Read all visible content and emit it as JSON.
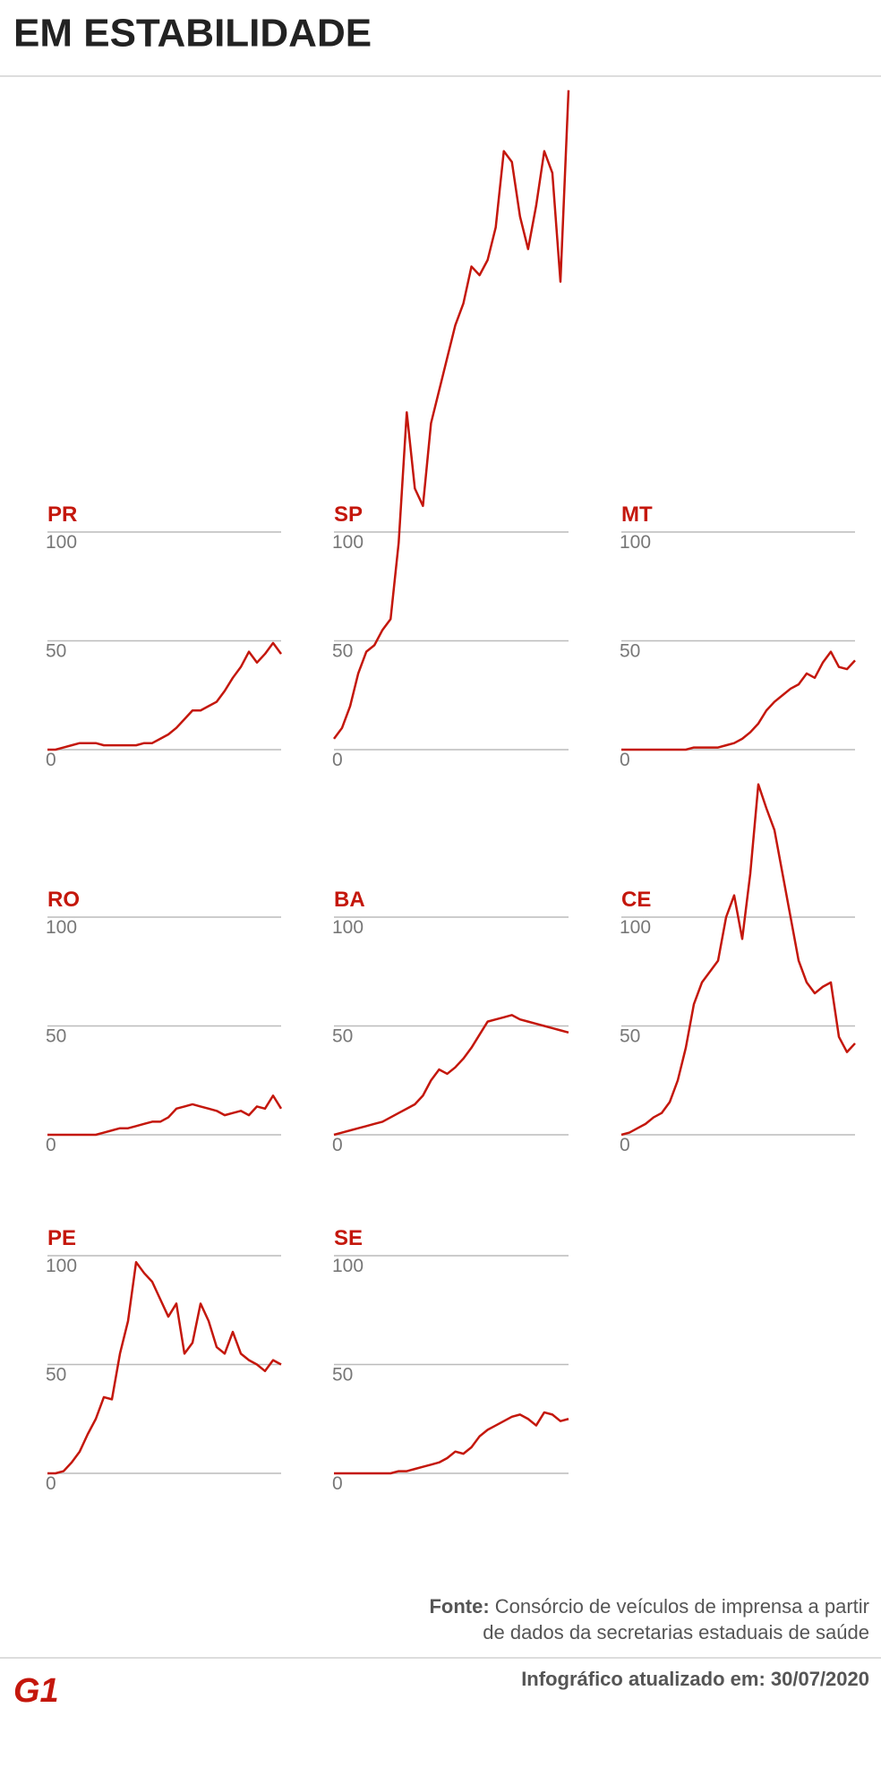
{
  "title": "EM ESTABILIDADE",
  "chart_data": [
    {
      "type": "line",
      "title": "PR",
      "color": "#c4170c",
      "grid": true,
      "ylim": [
        0,
        100
      ],
      "yticks": [
        0,
        50,
        100
      ],
      "values": [
        0,
        0,
        1,
        2,
        3,
        3,
        3,
        2,
        2,
        2,
        2,
        2,
        3,
        3,
        5,
        7,
        10,
        14,
        18,
        18,
        20,
        22,
        27,
        33,
        38,
        45,
        40,
        44,
        49,
        44
      ]
    },
    {
      "type": "line",
      "title": "SP",
      "color": "#c4170c",
      "grid": true,
      "ylim": [
        0,
        310
      ],
      "yticks": [
        0,
        50,
        100
      ],
      "values": [
        5,
        10,
        20,
        35,
        45,
        48,
        55,
        60,
        95,
        155,
        120,
        112,
        150,
        165,
        180,
        195,
        205,
        222,
        218,
        225,
        240,
        275,
        270,
        245,
        230,
        250,
        275,
        265,
        215,
        303
      ]
    },
    {
      "type": "line",
      "title": "MT",
      "color": "#c4170c",
      "grid": true,
      "ylim": [
        0,
        100
      ],
      "yticks": [
        0,
        50,
        100
      ],
      "values": [
        0,
        0,
        0,
        0,
        0,
        0,
        0,
        0,
        0,
        1,
        1,
        1,
        1,
        2,
        3,
        5,
        8,
        12,
        18,
        22,
        25,
        28,
        30,
        35,
        33,
        40,
        45,
        38,
        37,
        41
      ]
    },
    {
      "type": "line",
      "title": "RO",
      "color": "#c4170c",
      "grid": true,
      "ylim": [
        0,
        100
      ],
      "yticks": [
        0,
        50,
        100
      ],
      "values": [
        0,
        0,
        0,
        0,
        0,
        0,
        0,
        1,
        2,
        3,
        3,
        4,
        5,
        6,
        6,
        8,
        12,
        13,
        14,
        13,
        12,
        11,
        9,
        10,
        11,
        9,
        13,
        12,
        18,
        12
      ]
    },
    {
      "type": "line",
      "title": "BA",
      "color": "#c4170c",
      "grid": true,
      "ylim": [
        0,
        100
      ],
      "yticks": [
        0,
        50,
        100
      ],
      "values": [
        0,
        1,
        2,
        3,
        4,
        5,
        6,
        8,
        10,
        12,
        14,
        18,
        25,
        30,
        28,
        31,
        35,
        40,
        46,
        52,
        53,
        54,
        55,
        53,
        52,
        51,
        50,
        49,
        48,
        47
      ]
    },
    {
      "type": "line",
      "title": "CE",
      "color": "#c4170c",
      "grid": true,
      "ylim": [
        0,
        165
      ],
      "yticks": [
        0,
        50,
        100
      ],
      "values": [
        0,
        1,
        3,
        5,
        8,
        10,
        15,
        25,
        40,
        60,
        70,
        75,
        80,
        100,
        110,
        90,
        120,
        161,
        150,
        140,
        120,
        100,
        80,
        70,
        65,
        68,
        70,
        45,
        38,
        42
      ]
    },
    {
      "type": "line",
      "title": "PE",
      "color": "#c4170c",
      "grid": true,
      "ylim": [
        0,
        100
      ],
      "yticks": [
        0,
        50,
        100
      ],
      "values": [
        0,
        0,
        1,
        5,
        10,
        18,
        25,
        35,
        34,
        55,
        70,
        97,
        92,
        88,
        80,
        72,
        78,
        55,
        60,
        78,
        70,
        58,
        55,
        65,
        55,
        52,
        50,
        47,
        52,
        50
      ]
    },
    {
      "type": "line",
      "title": "SE",
      "color": "#c4170c",
      "grid": true,
      "ylim": [
        0,
        100
      ],
      "yticks": [
        0,
        50,
        100
      ],
      "values": [
        0,
        0,
        0,
        0,
        0,
        0,
        0,
        0,
        1,
        1,
        2,
        3,
        4,
        5,
        7,
        10,
        9,
        12,
        17,
        20,
        22,
        24,
        26,
        27,
        25,
        22,
        28,
        27,
        24,
        25
      ]
    }
  ],
  "footer": {
    "source_label": "Fonte:",
    "source_lines": [
      "Consórcio de veículos de imprensa a partir",
      "de dados da secretarias estaduais de saúde"
    ],
    "updated": "Infográfico atualizado em: 30/07/2020",
    "logo": "G1"
  }
}
